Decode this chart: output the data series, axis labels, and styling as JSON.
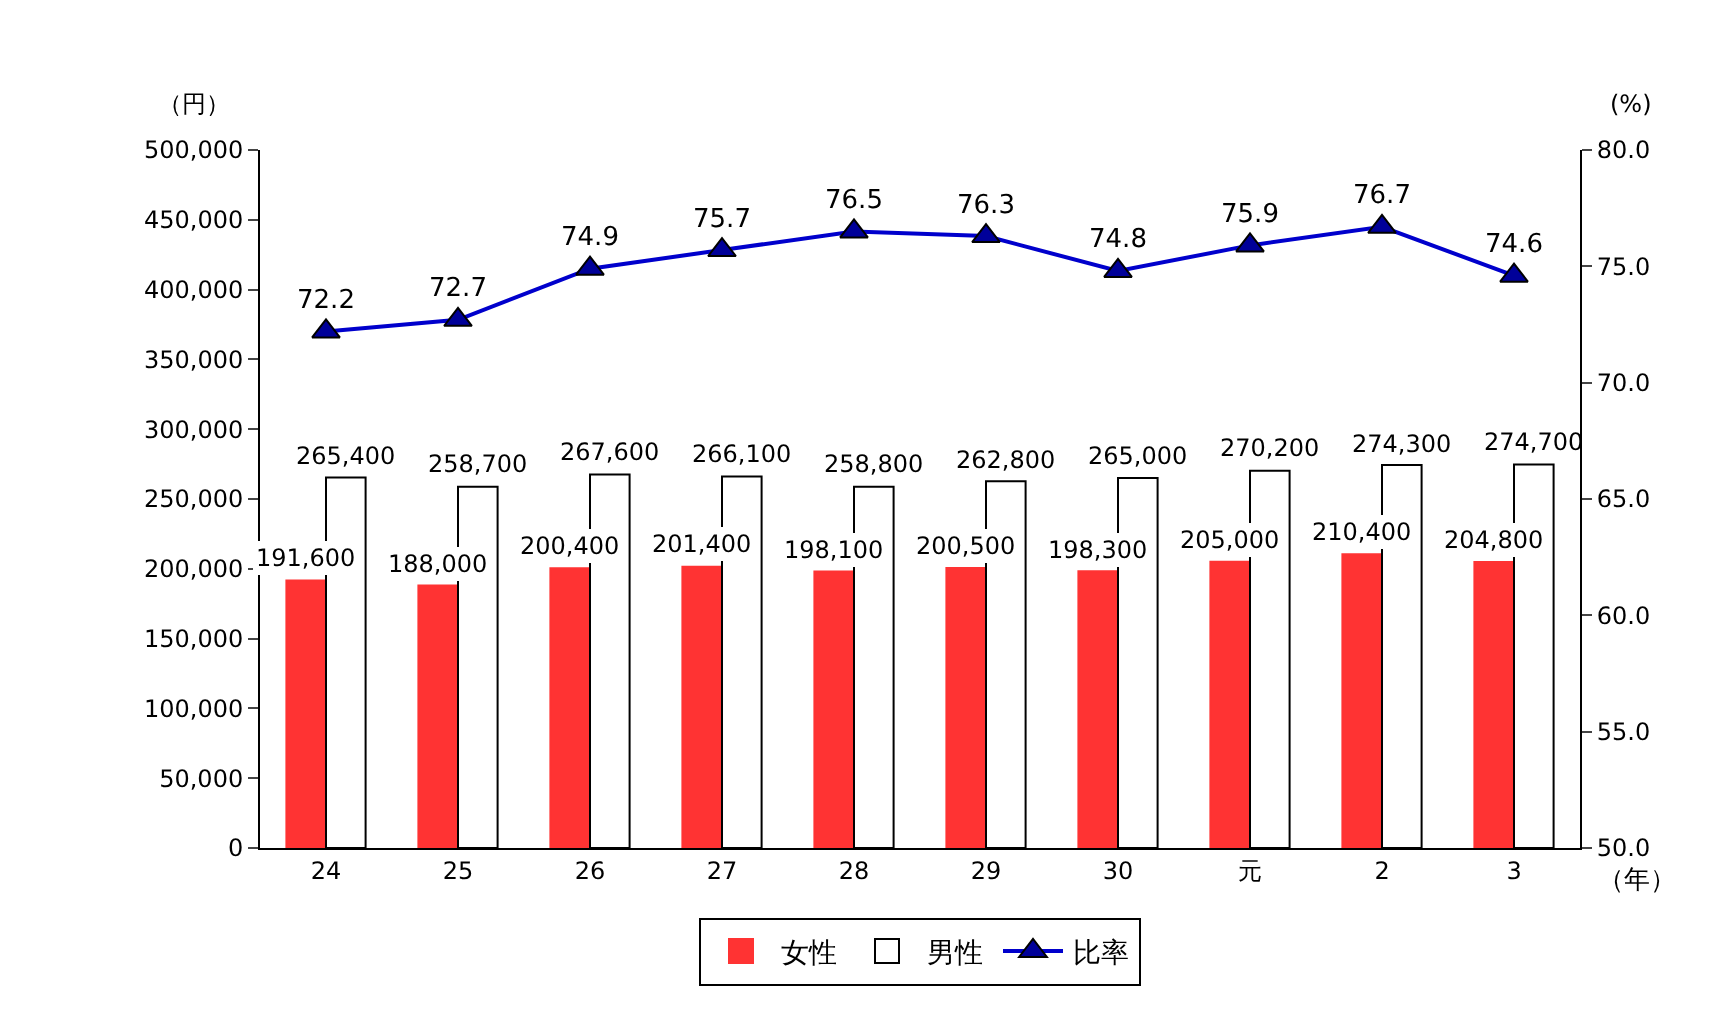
{
  "chart_data": {
    "type": "bar",
    "categories": [
      "24",
      "25",
      "26",
      "27",
      "28",
      "29",
      "30",
      "元",
      "2",
      "3"
    ],
    "series": [
      {
        "name": "女性",
        "color": "#ff3333",
        "values": [
          191600,
          188000,
          200400,
          201400,
          198100,
          200500,
          198300,
          205000,
          210400,
          204800
        ],
        "value_labels": [
          "191,600",
          "188,000",
          "200,400",
          "201,400",
          "198,100",
          "200,500",
          "198,300",
          "205,000",
          "210,400",
          "204,800"
        ]
      },
      {
        "name": "男性",
        "color": "#ffffff",
        "values": [
          265400,
          258700,
          267600,
          266100,
          258800,
          262800,
          265000,
          270200,
          274300,
          274700
        ],
        "value_labels": [
          "265,400",
          "258,700",
          "267,600",
          "266,100",
          "258,800",
          "262,800",
          "265,000",
          "270,200",
          "274,300",
          "274,700"
        ]
      },
      {
        "name": "比率",
        "type": "line",
        "axis": "y2",
        "color": "#0000cc",
        "values": [
          72.2,
          72.7,
          74.9,
          75.7,
          76.5,
          76.3,
          74.8,
          75.9,
          76.7,
          74.6
        ],
        "value_labels": [
          "72.2",
          "72.7",
          "74.9",
          "75.7",
          "76.5",
          "76.3",
          "74.8",
          "75.9",
          "76.7",
          "74.6"
        ]
      }
    ],
    "ylabel": "（円）",
    "y2label": "(%)",
    "annotations": [
      "（年）"
    ],
    "ylim": [
      0,
      500000
    ],
    "yticks": [
      {
        "value": 0,
        "label": "0"
      },
      {
        "value": 50000,
        "label": "50,000"
      },
      {
        "value": 100000,
        "label": "100,000"
      },
      {
        "value": 150000,
        "label": "150,000"
      },
      {
        "value": 200000,
        "label": "200,000"
      },
      {
        "value": 250000,
        "label": "250,000"
      },
      {
        "value": 300000,
        "label": "300,000"
      },
      {
        "value": 350000,
        "label": "350,000"
      },
      {
        "value": 400000,
        "label": "400,000"
      },
      {
        "value": 450000,
        "label": "450,000"
      },
      {
        "value": 500000,
        "label": "500,000"
      }
    ],
    "y2lim": [
      50,
      80
    ],
    "y2ticks": [
      {
        "value": 50,
        "label": "50.0"
      },
      {
        "value": 55,
        "label": "55.0"
      },
      {
        "value": 60,
        "label": "60.0"
      },
      {
        "value": 65,
        "label": "65.0"
      },
      {
        "value": 70,
        "label": "70.0"
      },
      {
        "value": 75,
        "label": "75.0"
      },
      {
        "value": 80,
        "label": "80.0"
      }
    ],
    "legend": "bottom",
    "marker": "triangle",
    "line_style": "solid"
  }
}
